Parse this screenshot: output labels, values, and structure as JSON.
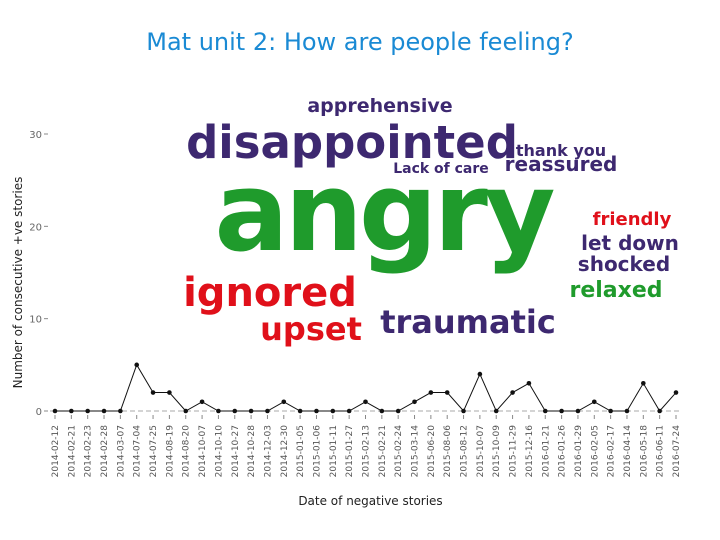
{
  "slide": {
    "title": "Mat unit 2: How are people feeling?"
  },
  "colors": {
    "green": "#1f9b2c",
    "purple": "#3d2870",
    "red": "#e0101a",
    "blue_title": "#1a8ad4"
  },
  "word_cloud": [
    {
      "text": "apprehensive",
      "color": "purple"
    },
    {
      "text": "disappointed",
      "color": "purple"
    },
    {
      "text": "thank you",
      "color": "purple"
    },
    {
      "text": "Lack of care",
      "color": "purple"
    },
    {
      "text": "reassured",
      "color": "purple"
    },
    {
      "text": "angry",
      "color": "green"
    },
    {
      "text": "friendly",
      "color": "red"
    },
    {
      "text": "let down",
      "color": "purple"
    },
    {
      "text": "shocked",
      "color": "purple"
    },
    {
      "text": "ignored",
      "color": "red"
    },
    {
      "text": "relaxed",
      "color": "green"
    },
    {
      "text": "upset",
      "color": "red"
    },
    {
      "text": "traumatic",
      "color": "purple"
    }
  ],
  "chart_data": {
    "type": "line",
    "xlabel": "Date of negative stories",
    "ylabel": "Number of consecutive +ve stories",
    "ylim": [
      0,
      30
    ],
    "yticks": [
      0,
      10,
      20,
      30
    ],
    "grid": false,
    "baseline_dashed": true,
    "categories": [
      "2014-02-12",
      "2014-02-21",
      "2014-02-23",
      "2014-02-28",
      "2014-03-07",
      "2014-07-04",
      "2014-07-25",
      "2014-08-19",
      "2014-08-20",
      "2014-10-07",
      "2014-10-10",
      "2014-10-27",
      "2014-10-28",
      "2014-12-03",
      "2014-12-30",
      "2015-01-05",
      "2015-01-06",
      "2015-01-11",
      "2015-01-27",
      "2015-02-13",
      "2015-02-21",
      "2015-02-24",
      "2015-03-14",
      "2015-06-20",
      "2015-08-06",
      "2015-08-12",
      "2015-10-07",
      "2015-10-09",
      "2015-11-29",
      "2015-12-16",
      "2016-01-21",
      "2016-01-26",
      "2016-01-29",
      "2016-02-05",
      "2016-02-17",
      "2016-04-14",
      "2016-05-18",
      "2016-06-11",
      "2016-07-24"
    ],
    "x_labels_printed": [
      "2014-02-12",
      "2014-02-21",
      "2014-02-23",
      "2014-02-28",
      "2014-03-07",
      "2014-07-04",
      "2014-07-25",
      "2014-08-19",
      "2014-08-20",
      "2014-10-07",
      "2014-10-10",
      "2014-10-27",
      "2014-10-28",
      "2014-12-03",
      "2014-12-30",
      "2015-01-05",
      "2015-01-06",
      "2015-01-11",
      "2015-01-27",
      "2015-02-13",
      "2015-02-21",
      "2015-02-24",
      "2015-03-14",
      "2015-06-20",
      "2015-08-06",
      "2015-08-12",
      "2015-10-07",
      "2015-10-09",
      "2015-11-29",
      "2015-12-16",
      "2016-01-21",
      "2016-01-26",
      "2016-01-29",
      "2016-02-05",
      "2016-02-17",
      "2016-04-14",
      "2016-05-18",
      "2016-06-11",
      "2016-07-24"
    ],
    "values": [
      0,
      0,
      0,
      0,
      0,
      5,
      2,
      2,
      0,
      1,
      0,
      0,
      0,
      0,
      1,
      0,
      0,
      0,
      0,
      1,
      0,
      0,
      1,
      2,
      2,
      0,
      4,
      0,
      2,
      3,
      0,
      0,
      0,
      1,
      0,
      0,
      3,
      0,
      2
    ]
  }
}
